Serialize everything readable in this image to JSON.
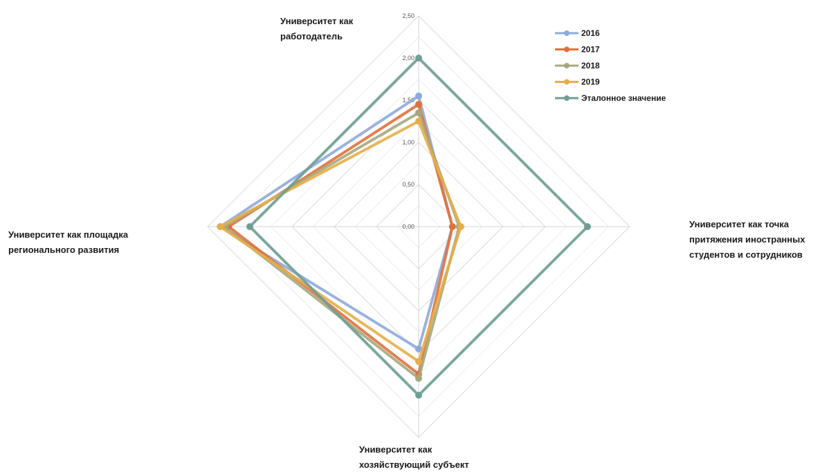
{
  "chart_data": {
    "type": "radar",
    "title": "",
    "axes": [
      "Университет как работодатель",
      "Университет как точка притяжения иностранных студентов и сотрудников",
      "Университет как хозяйствующий субъект",
      "Университет как площадка регионального развития"
    ],
    "axis_label_lines": [
      [
        "Университет как",
        "работодатель"
      ],
      [
        "Университет как точка",
        "притяжения иностранных",
        "студентов и сотрудников"
      ],
      [
        "Университет как",
        "хозяйствующий субъект"
      ],
      [
        "Университет как площадка",
        "регионального развития"
      ]
    ],
    "range": [
      0,
      2.5
    ],
    "ticks": [
      "0,00",
      "0,50",
      "1,00",
      "1,50",
      "2,00",
      "2,50"
    ],
    "tick_values": [
      0,
      0.5,
      1,
      1.5,
      2,
      2.5
    ],
    "grid_levels": 10,
    "legend_position": "top-right",
    "series": [
      {
        "name": "2016",
        "color": "#8eaadb",
        "values": [
          1.55,
          0.4,
          1.45,
          2.35
        ]
      },
      {
        "name": "2017",
        "color": "#e2703a",
        "values": [
          1.45,
          0.4,
          1.75,
          2.25
        ]
      },
      {
        "name": "2018",
        "color": "#a5a77e",
        "values": [
          1.35,
          0.48,
          1.8,
          2.3
        ]
      },
      {
        "name": "2019",
        "color": "#e6ae48",
        "values": [
          1.25,
          0.5,
          1.6,
          2.35
        ]
      },
      {
        "name": "Эталонное значение",
        "color": "#6e9e94",
        "values": [
          2.0,
          2.0,
          2.0,
          2.0
        ]
      }
    ]
  }
}
